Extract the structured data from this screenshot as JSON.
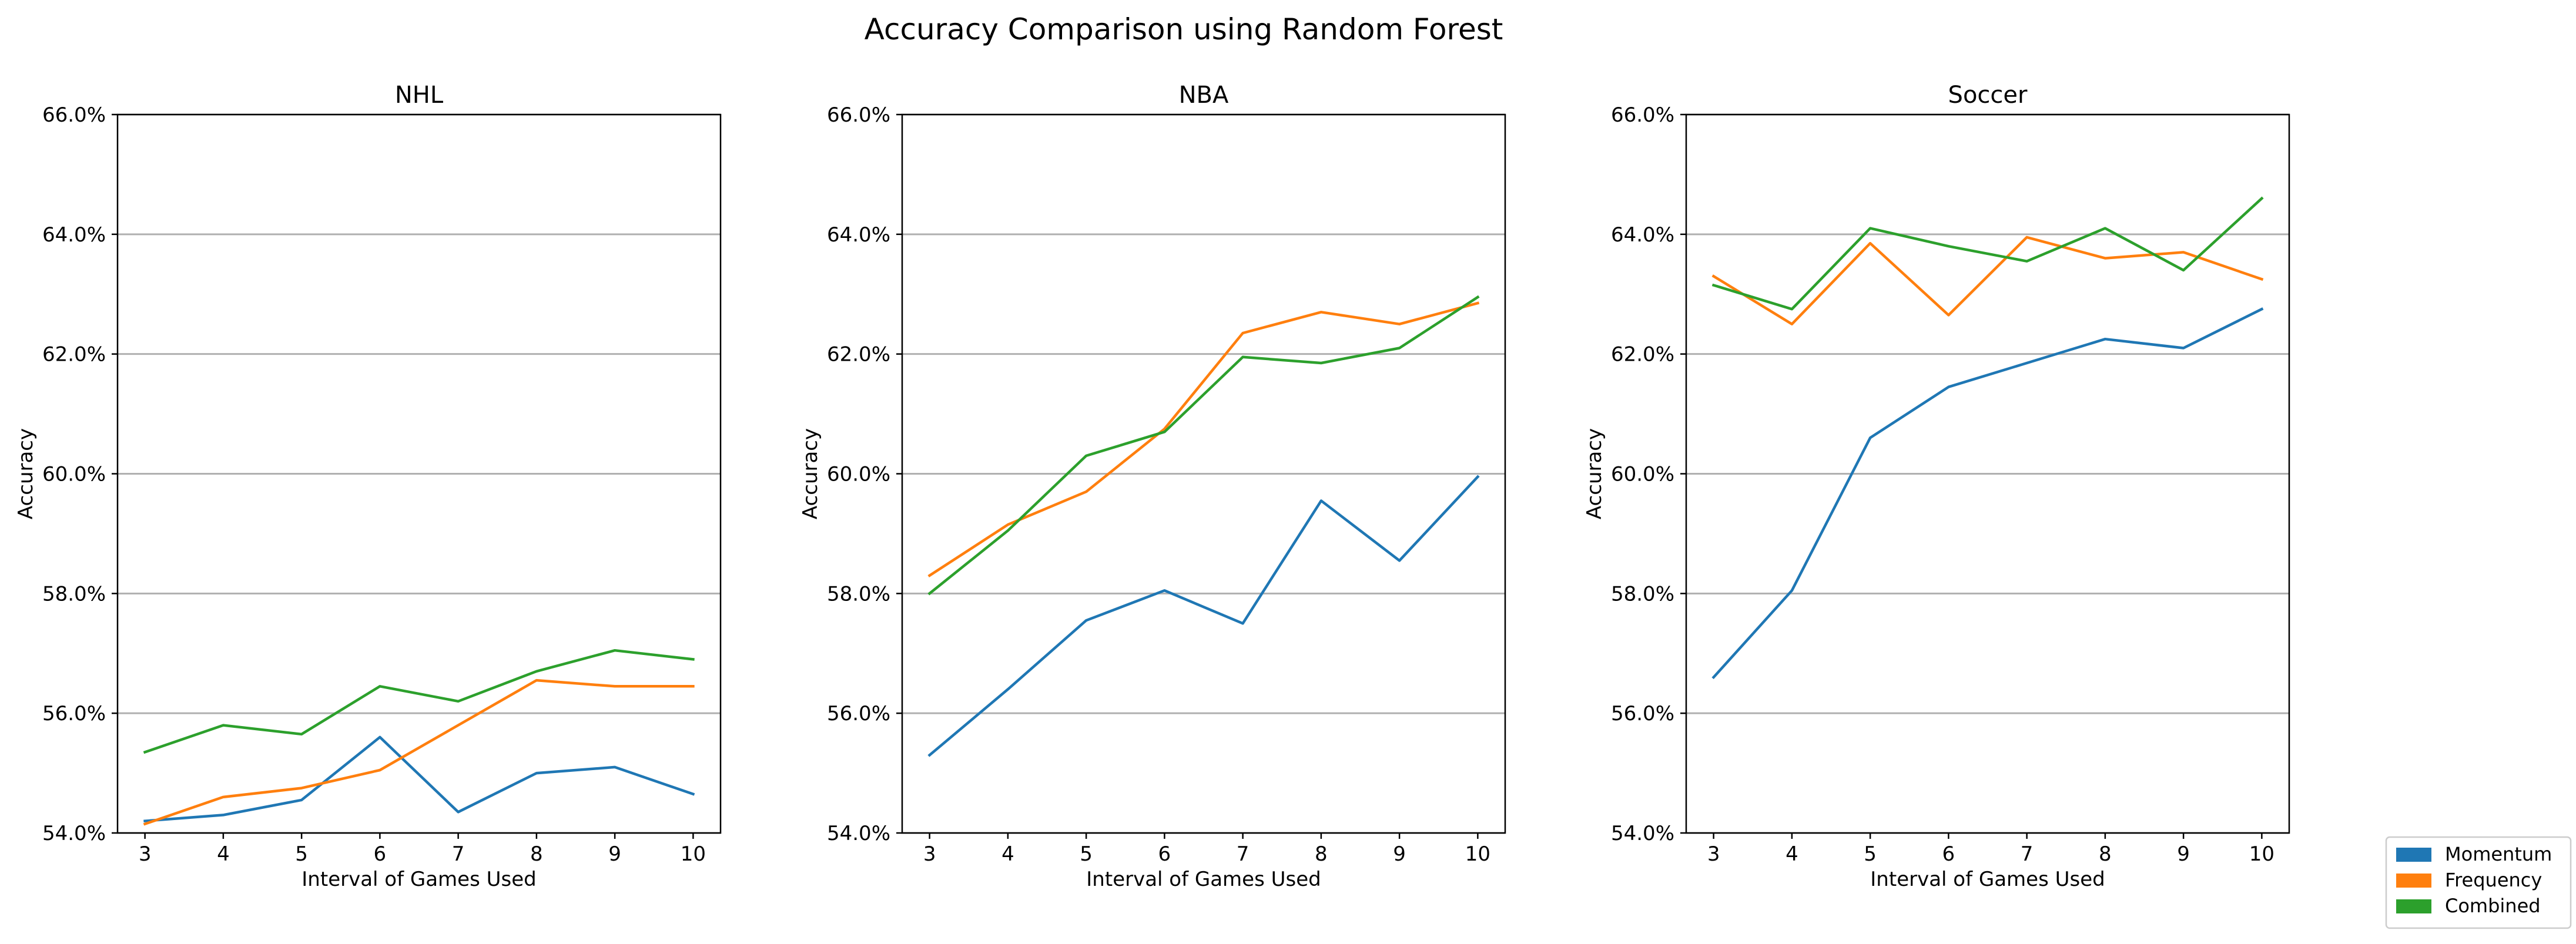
{
  "figure_title": "Accuracy Comparison using Random Forest",
  "legend": {
    "entries": [
      {
        "label": "Momentum",
        "color": "#1f77b4"
      },
      {
        "label": "Frequency",
        "color": "#ff7f0e"
      },
      {
        "label": "Combined",
        "color": "#2ca02c"
      }
    ],
    "placement": "bottom-right"
  },
  "chart_data": [
    {
      "type": "line",
      "title": "NHL",
      "xlabel": "Interval of Games Used",
      "ylabel": "Accuracy",
      "x": [
        3,
        4,
        5,
        6,
        7,
        8,
        9,
        10
      ],
      "xlim": [
        2.65,
        10.35
      ],
      "ylim": [
        54.0,
        66.0
      ],
      "yticks": [
        54.0,
        56.0,
        58.0,
        60.0,
        62.0,
        64.0,
        66.0
      ],
      "ytick_labels": [
        "54.0%",
        "56.0%",
        "58.0%",
        "60.0%",
        "62.0%",
        "64.0%",
        "66.0%"
      ],
      "xtick_labels": [
        "3",
        "4",
        "5",
        "6",
        "7",
        "8",
        "9",
        "10"
      ],
      "grid": "horizontal",
      "series": [
        {
          "name": "Momentum",
          "color": "#1f77b4",
          "values": [
            54.2,
            54.3,
            54.55,
            55.6,
            54.35,
            55.0,
            55.1,
            54.65
          ]
        },
        {
          "name": "Frequency",
          "color": "#ff7f0e",
          "values": [
            54.15,
            54.6,
            54.75,
            55.05,
            55.8,
            56.55,
            56.45,
            56.45
          ]
        },
        {
          "name": "Combined",
          "color": "#2ca02c",
          "values": [
            55.35,
            55.8,
            55.65,
            56.45,
            56.2,
            56.7,
            57.05,
            56.9
          ]
        }
      ]
    },
    {
      "type": "line",
      "title": "NBA",
      "xlabel": "Interval of Games Used",
      "ylabel": "Accuracy",
      "x": [
        3,
        4,
        5,
        6,
        7,
        8,
        9,
        10
      ],
      "xlim": [
        2.65,
        10.35
      ],
      "ylim": [
        54.0,
        66.0
      ],
      "yticks": [
        54.0,
        56.0,
        58.0,
        60.0,
        62.0,
        64.0,
        66.0
      ],
      "ytick_labels": [
        "54.0%",
        "56.0%",
        "58.0%",
        "60.0%",
        "62.0%",
        "64.0%",
        "66.0%"
      ],
      "xtick_labels": [
        "3",
        "4",
        "5",
        "6",
        "7",
        "8",
        "9",
        "10"
      ],
      "grid": "horizontal",
      "series": [
        {
          "name": "Momentum",
          "color": "#1f77b4",
          "values": [
            55.3,
            56.4,
            57.55,
            58.05,
            57.5,
            59.55,
            58.55,
            59.95
          ]
        },
        {
          "name": "Frequency",
          "color": "#ff7f0e",
          "values": [
            58.3,
            59.15,
            59.7,
            60.75,
            62.35,
            62.7,
            62.5,
            62.85
          ]
        },
        {
          "name": "Combined",
          "color": "#2ca02c",
          "values": [
            58.0,
            59.05,
            60.3,
            60.7,
            61.95,
            61.85,
            62.1,
            62.95
          ]
        }
      ]
    },
    {
      "type": "line",
      "title": "Soccer",
      "xlabel": "Interval of Games Used",
      "ylabel": "Accuracy",
      "x": [
        3,
        4,
        5,
        6,
        7,
        8,
        9,
        10
      ],
      "xlim": [
        2.65,
        10.35
      ],
      "ylim": [
        54.0,
        66.0
      ],
      "yticks": [
        54.0,
        56.0,
        58.0,
        60.0,
        62.0,
        64.0,
        66.0
      ],
      "ytick_labels": [
        "54.0%",
        "56.0%",
        "58.0%",
        "60.0%",
        "62.0%",
        "64.0%",
        "66.0%"
      ],
      "xtick_labels": [
        "3",
        "4",
        "5",
        "6",
        "7",
        "8",
        "9",
        "10"
      ],
      "grid": "horizontal",
      "series": [
        {
          "name": "Momentum",
          "color": "#1f77b4",
          "values": [
            56.6,
            58.05,
            60.6,
            61.45,
            61.85,
            62.25,
            62.1,
            62.75
          ]
        },
        {
          "name": "Frequency",
          "color": "#ff7f0e",
          "values": [
            63.3,
            62.5,
            63.85,
            62.65,
            63.95,
            63.6,
            63.7,
            63.25
          ]
        },
        {
          "name": "Combined",
          "color": "#2ca02c",
          "values": [
            63.15,
            62.75,
            64.1,
            63.8,
            63.55,
            64.1,
            63.4,
            64.6
          ]
        }
      ]
    }
  ]
}
